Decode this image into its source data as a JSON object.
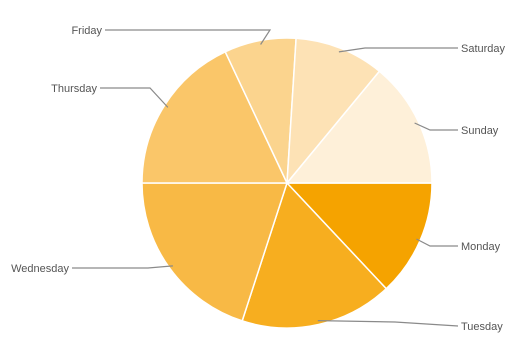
{
  "chart_data": {
    "type": "pie",
    "title": "",
    "legend": "none",
    "labels_position": "outside-with-leader-lines",
    "start_direction": "east",
    "rotation": "clockwise",
    "slices": [
      {
        "label": "Monday",
        "value": 13,
        "color": "#f5a300"
      },
      {
        "label": "Tuesday",
        "value": 17,
        "color": "#f7ae1f"
      },
      {
        "label": "Wednesday",
        "value": 20,
        "color": "#f8b945"
      },
      {
        "label": "Thursday",
        "value": 18,
        "color": "#fac669"
      },
      {
        "label": "Friday",
        "value": 8,
        "color": "#fbd48e"
      },
      {
        "label": "Saturday",
        "value": 10,
        "color": "#fde2b5"
      },
      {
        "label": "Sunday",
        "value": 14,
        "color": "#fef0d9"
      }
    ]
  }
}
